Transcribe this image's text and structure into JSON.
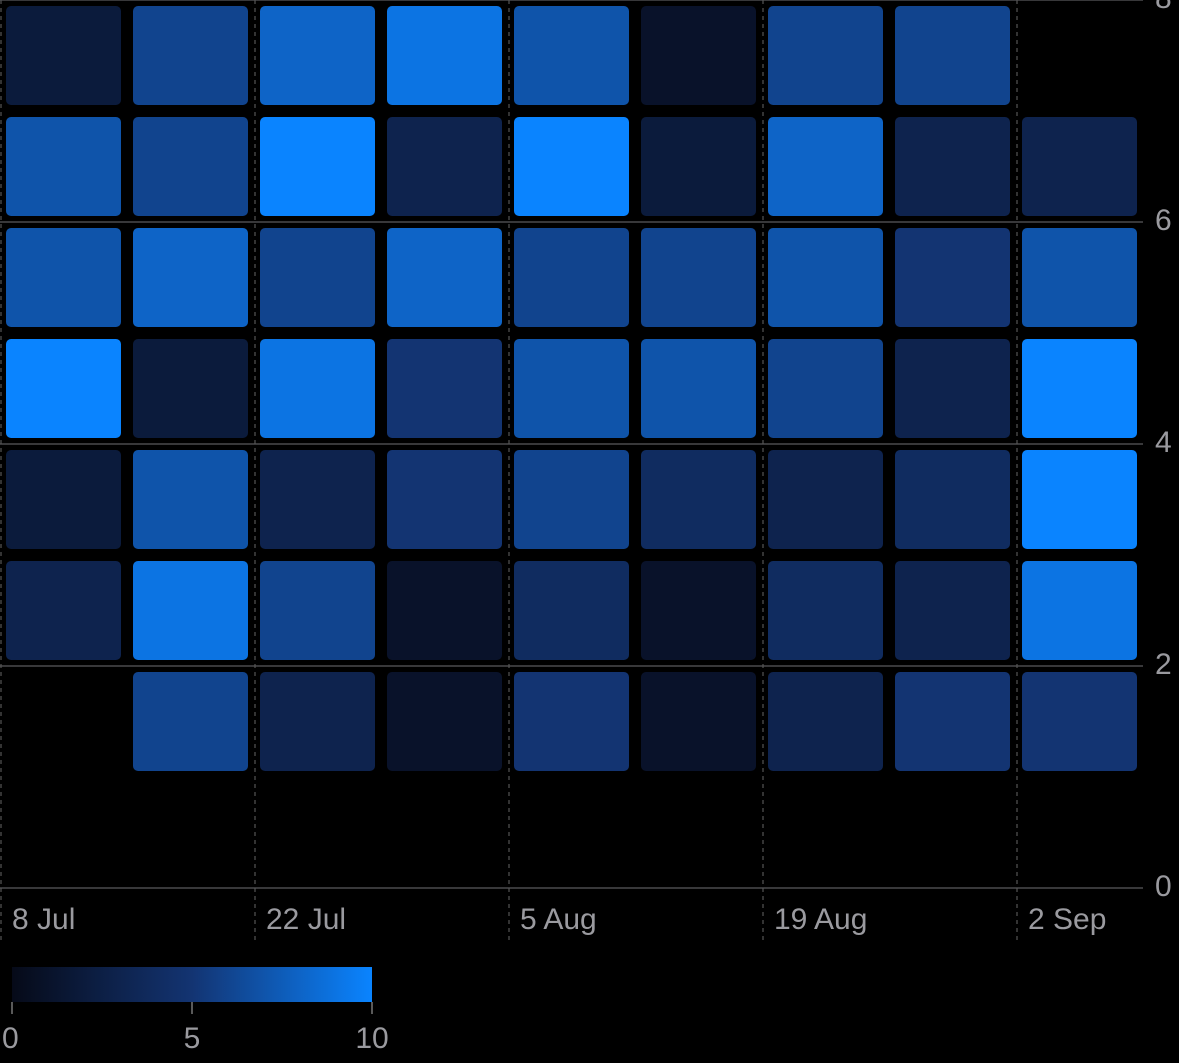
{
  "chart_data": {
    "type": "heatmap",
    "categories": [
      "8 Jul",
      null,
      "22 Jul",
      null,
      "5 Aug",
      null,
      "19 Aug",
      null,
      "2 Sep"
    ],
    "y": [
      7,
      6,
      5,
      4,
      3,
      2,
      1
    ],
    "values": [
      [
        2,
        6,
        8,
        9,
        7,
        1,
        6,
        6,
        null
      ],
      [
        7,
        6,
        10,
        3,
        10,
        2,
        8,
        3,
        3
      ],
      [
        7,
        8,
        6,
        8,
        6,
        6,
        7,
        5,
        7
      ],
      [
        10,
        2,
        9,
        5,
        7,
        7,
        6,
        3,
        10
      ],
      [
        2,
        7,
        3,
        5,
        6,
        4,
        3,
        4,
        10
      ],
      [
        3,
        9,
        6,
        1,
        4,
        1,
        4,
        3,
        9
      ],
      [
        null,
        6,
        3,
        1,
        5,
        1,
        3,
        5,
        5
      ]
    ],
    "ylim": [
      0,
      8
    ],
    "yticks": [
      0,
      2,
      4,
      6,
      8
    ],
    "grid": true,
    "colorbar": {
      "lim": [
        0,
        10
      ],
      "ticks": [
        0,
        5,
        10
      ],
      "colors": [
        "#060a18",
        "#133472",
        "#0a84ff"
      ]
    }
  }
}
